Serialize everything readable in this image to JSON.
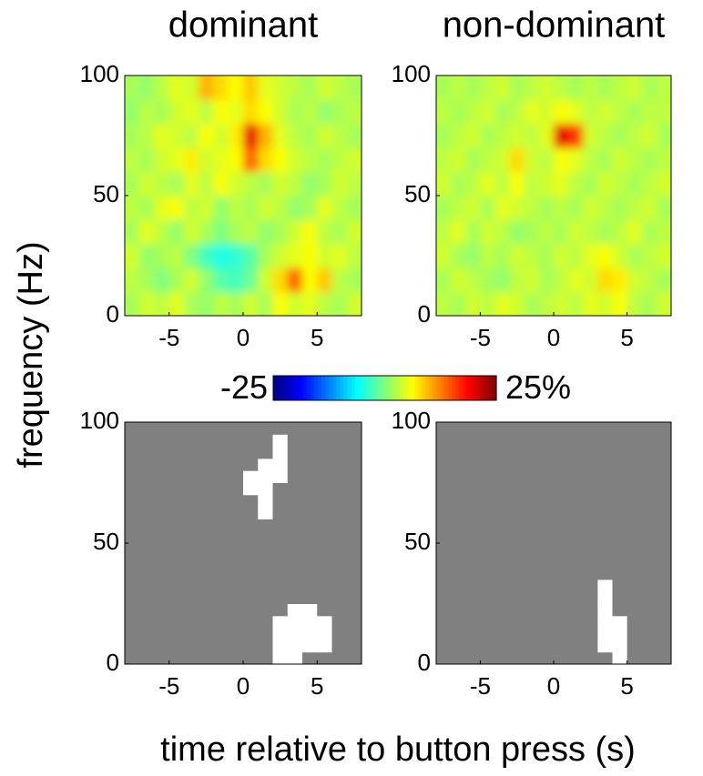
{
  "chart_data": {
    "type": "heatmap",
    "xlabel": "time relative to button press (s)",
    "ylabel": "frequency (Hz)",
    "xlim": [
      -8,
      8
    ],
    "ylim": [
      0,
      100
    ],
    "xticks": [
      -5,
      0,
      5
    ],
    "yticks": [
      0,
      50,
      100
    ],
    "colormap": "jet",
    "clim": [
      -25,
      25
    ],
    "colorbar_ticks": [
      -25,
      {
        "value": 25,
        "label": "25%"
      }
    ],
    "mask_colors": [
      "#808080",
      "#ffffff"
    ],
    "panels": [
      {
        "title": "dominant",
        "kind": "power",
        "x": [
          -7.5,
          -6.5,
          -5.5,
          -4.5,
          -3.5,
          -2.5,
          -1.5,
          -0.5,
          0.5,
          1.5,
          2.5,
          3.5,
          4.5,
          5.5,
          6.5,
          7.5
        ],
        "y": [
          5,
          15,
          25,
          35,
          45,
          55,
          65,
          75,
          85,
          95
        ],
        "z": [
          [
            2,
            4,
            3,
            5,
            2,
            1,
            3,
            2,
            4,
            2,
            6,
            4,
            5,
            3,
            2,
            4
          ],
          [
            3,
            2,
            0,
            2,
            4,
            1,
            -2,
            -3,
            -1,
            4,
            8,
            14,
            6,
            9,
            3,
            2
          ],
          [
            4,
            1,
            2,
            3,
            0,
            -3,
            -5,
            -4,
            -2,
            2,
            4,
            5,
            6,
            4,
            5,
            3
          ],
          [
            2,
            5,
            3,
            1,
            4,
            2,
            0,
            2,
            3,
            1,
            2,
            4,
            6,
            3,
            2,
            4
          ],
          [
            3,
            2,
            5,
            6,
            3,
            4,
            1,
            3,
            2,
            4,
            3,
            1,
            2,
            5,
            3,
            2
          ],
          [
            2,
            4,
            3,
            2,
            5,
            3,
            6,
            4,
            3,
            2,
            4,
            3,
            1,
            2,
            4,
            3
          ],
          [
            3,
            2,
            4,
            5,
            7,
            4,
            5,
            6,
            14,
            8,
            6,
            4,
            3,
            2,
            3,
            4
          ],
          [
            2,
            3,
            5,
            4,
            3,
            6,
            4,
            7,
            20,
            10,
            5,
            3,
            2,
            4,
            3,
            2
          ],
          [
            1,
            3,
            2,
            4,
            5,
            3,
            6,
            5,
            8,
            6,
            4,
            2,
            3,
            1,
            2,
            3
          ],
          [
            2,
            1,
            3,
            5,
            4,
            10,
            8,
            6,
            9,
            5,
            4,
            3,
            2,
            4,
            3,
            2
          ]
        ]
      },
      {
        "title": "non-dominant",
        "kind": "power",
        "x": [
          -7.5,
          -6.5,
          -5.5,
          -4.5,
          -3.5,
          -2.5,
          -1.5,
          -0.5,
          0.5,
          1.5,
          2.5,
          3.5,
          4.5,
          5.5,
          6.5,
          7.5
        ],
        "y": [
          5,
          15,
          25,
          35,
          45,
          55,
          65,
          75,
          85,
          95
        ],
        "z": [
          [
            3,
            2,
            4,
            3,
            5,
            4,
            2,
            3,
            4,
            3,
            5,
            4,
            6,
            3,
            2,
            4
          ],
          [
            2,
            4,
            3,
            2,
            1,
            3,
            4,
            2,
            3,
            5,
            4,
            8,
            7,
            4,
            3,
            2
          ],
          [
            4,
            2,
            1,
            3,
            2,
            4,
            3,
            2,
            4,
            3,
            5,
            6,
            4,
            2,
            3,
            4
          ],
          [
            3,
            5,
            2,
            4,
            3,
            1,
            2,
            3,
            2,
            4,
            3,
            2,
            3,
            5,
            2,
            3
          ],
          [
            2,
            3,
            4,
            2,
            5,
            4,
            3,
            2,
            3,
            2,
            4,
            3,
            2,
            3,
            4,
            2
          ],
          [
            4,
            2,
            3,
            5,
            3,
            6,
            3,
            4,
            5,
            3,
            2,
            4,
            3,
            2,
            3,
            4
          ],
          [
            3,
            4,
            2,
            3,
            4,
            8,
            4,
            3,
            6,
            5,
            3,
            2,
            4,
            3,
            2,
            3
          ],
          [
            2,
            3,
            4,
            2,
            3,
            4,
            3,
            5,
            20,
            16,
            4,
            3,
            2,
            3,
            4,
            2
          ],
          [
            3,
            2,
            3,
            4,
            2,
            3,
            5,
            4,
            6,
            5,
            3,
            4,
            3,
            2,
            3,
            3
          ],
          [
            2,
            3,
            2,
            3,
            4,
            2,
            3,
            4,
            3,
            2,
            3,
            2,
            3,
            4,
            2,
            3
          ]
        ]
      },
      {
        "kind": "mask",
        "x": [
          -7.5,
          -6.5,
          -5.5,
          -4.5,
          -3.5,
          -2.5,
          -1.5,
          -0.5,
          0.5,
          1.5,
          2.5,
          3.5,
          4.5,
          5.5,
          6.5,
          7.5
        ],
        "y": [
          2.5,
          7.5,
          12.5,
          17.5,
          22.5,
          27.5,
          32.5,
          37.5,
          42.5,
          47.5,
          52.5,
          57.5,
          62.5,
          67.5,
          72.5,
          77.5,
          82.5,
          87.5,
          92.5,
          97.5
        ],
        "z": [
          [
            0,
            0,
            0,
            0,
            0,
            0,
            0,
            0,
            0,
            0,
            1,
            1,
            0,
            0,
            0,
            0
          ],
          [
            0,
            0,
            0,
            0,
            0,
            0,
            0,
            0,
            0,
            0,
            1,
            1,
            1,
            1,
            0,
            0
          ],
          [
            0,
            0,
            0,
            0,
            0,
            0,
            0,
            0,
            0,
            0,
            1,
            1,
            1,
            1,
            0,
            0
          ],
          [
            0,
            0,
            0,
            0,
            0,
            0,
            0,
            0,
            0,
            0,
            1,
            1,
            1,
            1,
            0,
            0
          ],
          [
            0,
            0,
            0,
            0,
            0,
            0,
            0,
            0,
            0,
            0,
            0,
            1,
            1,
            0,
            0,
            0
          ],
          [
            0,
            0,
            0,
            0,
            0,
            0,
            0,
            0,
            0,
            0,
            0,
            0,
            0,
            0,
            0,
            0
          ],
          [
            0,
            0,
            0,
            0,
            0,
            0,
            0,
            0,
            0,
            0,
            0,
            0,
            0,
            0,
            0,
            0
          ],
          [
            0,
            0,
            0,
            0,
            0,
            0,
            0,
            0,
            0,
            0,
            0,
            0,
            0,
            0,
            0,
            0
          ],
          [
            0,
            0,
            0,
            0,
            0,
            0,
            0,
            0,
            0,
            0,
            0,
            0,
            0,
            0,
            0,
            0
          ],
          [
            0,
            0,
            0,
            0,
            0,
            0,
            0,
            0,
            0,
            0,
            0,
            0,
            0,
            0,
            0,
            0
          ],
          [
            0,
            0,
            0,
            0,
            0,
            0,
            0,
            0,
            0,
            0,
            0,
            0,
            0,
            0,
            0,
            0
          ],
          [
            0,
            0,
            0,
            0,
            0,
            0,
            0,
            0,
            0,
            0,
            0,
            0,
            0,
            0,
            0,
            0
          ],
          [
            0,
            0,
            0,
            0,
            0,
            0,
            0,
            0,
            0,
            1,
            0,
            0,
            0,
            0,
            0,
            0
          ],
          [
            0,
            0,
            0,
            0,
            0,
            0,
            0,
            0,
            0,
            1,
            0,
            0,
            0,
            0,
            0,
            0
          ],
          [
            0,
            0,
            0,
            0,
            0,
            0,
            0,
            0,
            1,
            1,
            0,
            0,
            0,
            0,
            0,
            0
          ],
          [
            0,
            0,
            0,
            0,
            0,
            0,
            0,
            0,
            1,
            1,
            1,
            0,
            0,
            0,
            0,
            0
          ],
          [
            0,
            0,
            0,
            0,
            0,
            0,
            0,
            0,
            0,
            1,
            1,
            0,
            0,
            0,
            0,
            0
          ],
          [
            0,
            0,
            0,
            0,
            0,
            0,
            0,
            0,
            0,
            0,
            1,
            0,
            0,
            0,
            0,
            0
          ],
          [
            0,
            0,
            0,
            0,
            0,
            0,
            0,
            0,
            0,
            0,
            1,
            0,
            0,
            0,
            0,
            0
          ],
          [
            0,
            0,
            0,
            0,
            0,
            0,
            0,
            0,
            0,
            0,
            0,
            0,
            0,
            0,
            0,
            0
          ]
        ]
      },
      {
        "kind": "mask",
        "x": [
          -7.5,
          -6.5,
          -5.5,
          -4.5,
          -3.5,
          -2.5,
          -1.5,
          -0.5,
          0.5,
          1.5,
          2.5,
          3.5,
          4.5,
          5.5,
          6.5,
          7.5
        ],
        "y": [
          2.5,
          7.5,
          12.5,
          17.5,
          22.5,
          27.5,
          32.5,
          37.5,
          42.5,
          47.5,
          52.5,
          57.5,
          62.5,
          67.5,
          72.5,
          77.5,
          82.5,
          87.5,
          92.5,
          97.5
        ],
        "z": [
          [
            0,
            0,
            0,
            0,
            0,
            0,
            0,
            0,
            0,
            0,
            0,
            0,
            1,
            0,
            0,
            0
          ],
          [
            0,
            0,
            0,
            0,
            0,
            0,
            0,
            0,
            0,
            0,
            0,
            1,
            1,
            0,
            0,
            0
          ],
          [
            0,
            0,
            0,
            0,
            0,
            0,
            0,
            0,
            0,
            0,
            0,
            1,
            1,
            0,
            0,
            0
          ],
          [
            0,
            0,
            0,
            0,
            0,
            0,
            0,
            0,
            0,
            0,
            0,
            1,
            1,
            0,
            0,
            0
          ],
          [
            0,
            0,
            0,
            0,
            0,
            0,
            0,
            0,
            0,
            0,
            0,
            1,
            0,
            0,
            0,
            0
          ],
          [
            0,
            0,
            0,
            0,
            0,
            0,
            0,
            0,
            0,
            0,
            0,
            1,
            0,
            0,
            0,
            0
          ],
          [
            0,
            0,
            0,
            0,
            0,
            0,
            0,
            0,
            0,
            0,
            0,
            1,
            0,
            0,
            0,
            0
          ],
          [
            0,
            0,
            0,
            0,
            0,
            0,
            0,
            0,
            0,
            0,
            0,
            0,
            0,
            0,
            0,
            0
          ],
          [
            0,
            0,
            0,
            0,
            0,
            0,
            0,
            0,
            0,
            0,
            0,
            0,
            0,
            0,
            0,
            0
          ],
          [
            0,
            0,
            0,
            0,
            0,
            0,
            0,
            0,
            0,
            0,
            0,
            0,
            0,
            0,
            0,
            0
          ],
          [
            0,
            0,
            0,
            0,
            0,
            0,
            0,
            0,
            0,
            0,
            0,
            0,
            0,
            0,
            0,
            0
          ],
          [
            0,
            0,
            0,
            0,
            0,
            0,
            0,
            0,
            0,
            0,
            0,
            0,
            0,
            0,
            0,
            0
          ],
          [
            0,
            0,
            0,
            0,
            0,
            0,
            0,
            0,
            0,
            0,
            0,
            0,
            0,
            0,
            0,
            0
          ],
          [
            0,
            0,
            0,
            0,
            0,
            0,
            0,
            0,
            0,
            0,
            0,
            0,
            0,
            0,
            0,
            0
          ],
          [
            0,
            0,
            0,
            0,
            0,
            0,
            0,
            0,
            0,
            0,
            0,
            0,
            0,
            0,
            0,
            0
          ],
          [
            0,
            0,
            0,
            0,
            0,
            0,
            0,
            0,
            0,
            0,
            0,
            0,
            0,
            0,
            0,
            0
          ],
          [
            0,
            0,
            0,
            0,
            0,
            0,
            0,
            0,
            0,
            0,
            0,
            0,
            0,
            0,
            0,
            0
          ],
          [
            0,
            0,
            0,
            0,
            0,
            0,
            0,
            0,
            0,
            0,
            0,
            0,
            0,
            0,
            0,
            0
          ],
          [
            0,
            0,
            0,
            0,
            0,
            0,
            0,
            0,
            0,
            0,
            0,
            0,
            0,
            0,
            0,
            0
          ],
          [
            0,
            0,
            0,
            0,
            0,
            0,
            0,
            0,
            0,
            0,
            0,
            0,
            0,
            0,
            0,
            0
          ]
        ]
      }
    ]
  }
}
